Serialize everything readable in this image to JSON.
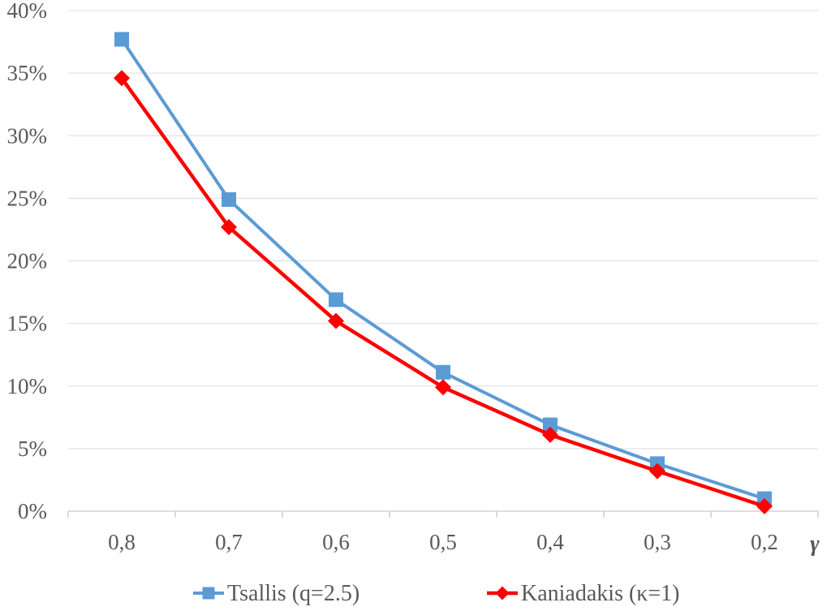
{
  "chart_data": {
    "type": "line",
    "title": "",
    "xlabel": "γ",
    "ylabel": "",
    "x_categories": [
      "0,8",
      "0,7",
      "0,6",
      "0,5",
      "0,4",
      "0,3",
      "0,2"
    ],
    "y_ticks": [
      "0%",
      "5%",
      "10%",
      "15%",
      "20%",
      "25%",
      "30%",
      "35%",
      "40%"
    ],
    "ylim": [
      0,
      40
    ],
    "y_tick_step": 5,
    "grid": true,
    "legend_position": "bottom",
    "series": [
      {
        "name": "Tsallis (q=2.5)",
        "color": "#5B9BD5",
        "marker": "square",
        "values": [
          37.7,
          24.9,
          16.9,
          11.1,
          6.9,
          3.8,
          1.0
        ]
      },
      {
        "name": "Kaniadakis (κ=1)",
        "color": "#FF0000",
        "marker": "diamond",
        "values": [
          34.6,
          22.7,
          15.2,
          9.9,
          6.1,
          3.2,
          0.4
        ]
      }
    ],
    "colors": {
      "grid": "#DCDCDC",
      "axis": "#D4D4D4",
      "tick": "#C9C9C9",
      "text": "#595959"
    }
  }
}
